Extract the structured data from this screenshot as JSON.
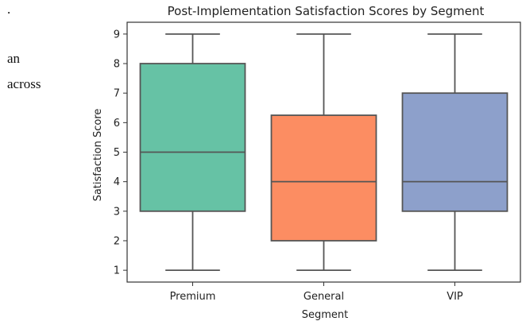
{
  "side_text": {
    "fragment_1": ".",
    "fragment_2": "an",
    "fragment_3": "across"
  },
  "chart_data": {
    "type": "box",
    "title": "Post-Implementation Satisfaction Scores by Segment",
    "xlabel": "Segment",
    "ylabel": "Satisfaction Score",
    "ylim": [
      0.6,
      9.4
    ],
    "yticks": [
      1,
      2,
      3,
      4,
      5,
      6,
      7,
      8,
      9
    ],
    "grid": false,
    "categories": [
      "Premium",
      "General",
      "VIP"
    ],
    "boxes": [
      {
        "category": "Premium",
        "min": 1,
        "q1": 3,
        "median": 5,
        "q3": 8,
        "max": 9,
        "color": "#66c2a5"
      },
      {
        "category": "General",
        "min": 1,
        "q1": 2,
        "median": 4,
        "q3": 6.25,
        "max": 9,
        "color": "#fc8d62"
      },
      {
        "category": "VIP",
        "min": 1,
        "q1": 3,
        "median": 4,
        "q3": 7,
        "max": 9,
        "color": "#8da0cb"
      }
    ],
    "line_color": "#555555"
  }
}
